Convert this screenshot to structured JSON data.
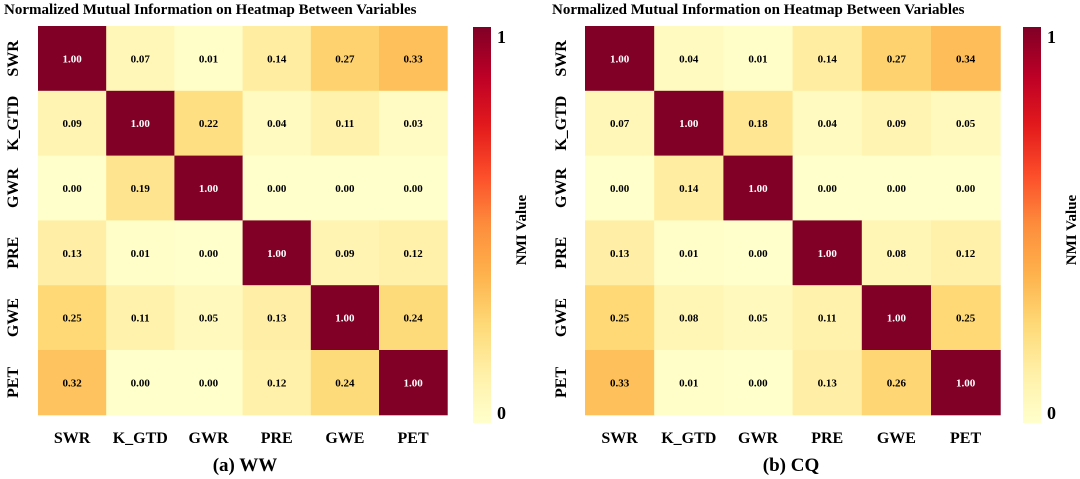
{
  "chart_data": [
    {
      "type": "heatmap",
      "title": "Normalized Mutual Information on Heatmap Between Variables",
      "caption": "(a) WW",
      "rows": [
        "SWR",
        "K_GTD",
        "GWR",
        "PRE",
        "GWE",
        "PET"
      ],
      "columns": [
        "SWR",
        "K_GTD",
        "GWR",
        "PRE",
        "GWE",
        "PET"
      ],
      "values": [
        [
          1.0,
          0.07,
          0.01,
          0.14,
          0.27,
          0.33
        ],
        [
          0.09,
          1.0,
          0.22,
          0.04,
          0.11,
          0.03
        ],
        [
          0.0,
          0.19,
          1.0,
          0.0,
          0.0,
          0.0
        ],
        [
          0.13,
          0.01,
          0.0,
          1.0,
          0.09,
          0.12
        ],
        [
          0.25,
          0.11,
          0.05,
          0.13,
          1.0,
          0.24
        ],
        [
          0.32,
          0.0,
          0.0,
          0.12,
          0.24,
          1.0
        ]
      ],
      "colorbar": {
        "label": "NMI  Value",
        "min_label": "0",
        "max_label": "1",
        "range": [
          0,
          1
        ]
      }
    },
    {
      "type": "heatmap",
      "title": "Normalized Mutual Information on Heatmap Between Variables",
      "caption": "(b) CQ",
      "rows": [
        "SWR",
        "K_GTD",
        "GWR",
        "PRE",
        "GWE",
        "PET"
      ],
      "columns": [
        "SWR",
        "K_GTD",
        "GWR",
        "PRE",
        "GWE",
        "PET"
      ],
      "values": [
        [
          1.0,
          0.04,
          0.01,
          0.14,
          0.27,
          0.34
        ],
        [
          0.07,
          1.0,
          0.18,
          0.04,
          0.09,
          0.05
        ],
        [
          0.0,
          0.14,
          1.0,
          0.0,
          0.0,
          0.0
        ],
        [
          0.13,
          0.01,
          0.0,
          1.0,
          0.08,
          0.12
        ],
        [
          0.25,
          0.08,
          0.05,
          0.11,
          1.0,
          0.25
        ],
        [
          0.33,
          0.01,
          0.0,
          0.13,
          0.26,
          1.0
        ]
      ],
      "colorbar": {
        "label": "NMI  Value",
        "min_label": "0",
        "max_label": "1",
        "range": [
          0,
          1
        ]
      }
    }
  ],
  "colors": {
    "scale": [
      "#ffffcc",
      "#fff0a8",
      "#fed976",
      "#feb24c",
      "#fd8d3c",
      "#fc4e2a",
      "#e31a1c",
      "#bd0026",
      "#800026"
    ],
    "text_dark": "#000000",
    "text_light": "#ffffff"
  }
}
